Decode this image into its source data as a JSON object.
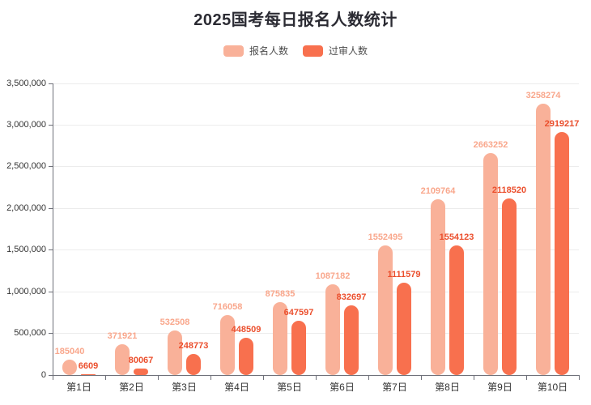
{
  "chart_data": {
    "type": "bar",
    "title": "2025国考每日报名人数统计",
    "categories": [
      "第1日",
      "第2日",
      "第3日",
      "第4日",
      "第5日",
      "第6日",
      "第7日",
      "第8日",
      "第9日",
      "第10日"
    ],
    "series": [
      {
        "name": "报名人数",
        "color": "#f9b199",
        "label_color": "#f9a78c",
        "values": [
          185040,
          371921,
          532508,
          716058,
          875835,
          1087182,
          1552495,
          2109764,
          2663252,
          3258274
        ]
      },
      {
        "name": "过审人数",
        "color": "#f8704e",
        "label_color": "#eb4f2d",
        "values": [
          6609,
          80067,
          248773,
          448509,
          647597,
          832697,
          1111579,
          1554123,
          2118520,
          2919217
        ]
      }
    ],
    "xlabel": "",
    "ylabel": "",
    "ylim": [
      0,
      3500000
    ],
    "y_tick_interval": 500000,
    "y_tick_labels": [
      "0",
      "500,000",
      "1,000,000",
      "1,500,000",
      "2,000,000",
      "2,500,000",
      "3,000,000",
      "3,500,000"
    ],
    "legend_position": "top",
    "grid": true
  },
  "colors": {
    "background": "#ffffff",
    "title_text": "#2b2b33",
    "axis_line": "#6e7079",
    "tick_label": "#333333",
    "grid_line": "#ececec",
    "legend_text": "#4c4c4c"
  }
}
